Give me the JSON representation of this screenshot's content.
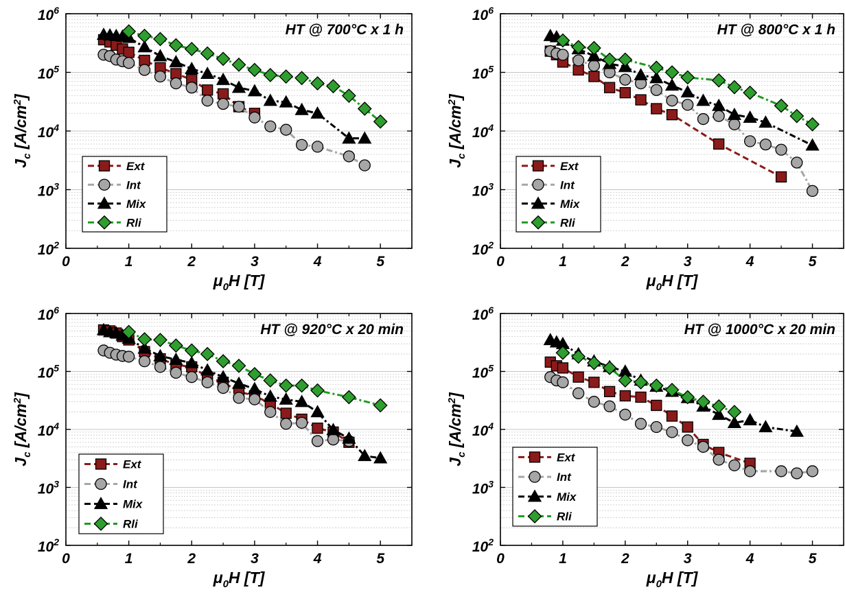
{
  "colors": {
    "ext": "#8b1a1a",
    "int": "#a6a6a6",
    "mix": "#000000",
    "rli": "#1f9a1f",
    "rli_marker": "#2e9e2e",
    "grid": "#c8c8c8"
  },
  "chart_data": [
    {
      "type": "line",
      "title": "HT @ 700°C x 1 h",
      "xlabel": "μ0H [T]",
      "ylabel": "Jc [A/cm2]",
      "x_ticks": [
        "0",
        "1",
        "2",
        "3",
        "4",
        "5"
      ],
      "y_ticks": [
        "10^2",
        "10^3",
        "10^4",
        "10^5",
        "10^6"
      ],
      "xlim": [
        0,
        5.5
      ],
      "ylim": [
        100,
        1000000
      ],
      "yscale": "log",
      "grid": "horizontal minor",
      "legend_position": "bottom-left",
      "series": [
        {
          "name": "Ext",
          "x": [
            0.6,
            0.7,
            0.8,
            0.9,
            1.0,
            1.25,
            1.5,
            1.75,
            2.0,
            2.25,
            2.5,
            2.75,
            3.0
          ],
          "y": [
            360000,
            330000,
            290000,
            250000,
            220000,
            160000,
            120000,
            95000,
            75000,
            50000,
            43000,
            26000,
            20000
          ]
        },
        {
          "name": "Int",
          "x": [
            0.6,
            0.7,
            0.8,
            0.9,
            1.0,
            1.25,
            1.5,
            1.75,
            2.0,
            2.25,
            2.5,
            2.75,
            3.0,
            3.25,
            3.5,
            3.75,
            4.0,
            4.5,
            4.75
          ],
          "y": [
            200000,
            190000,
            165000,
            155000,
            145000,
            110000,
            85000,
            65000,
            55000,
            33000,
            29000,
            26000,
            17000,
            12000,
            10500,
            5800,
            5400,
            3700,
            2600
          ]
        },
        {
          "name": "Mix",
          "x": [
            0.6,
            0.7,
            0.8,
            0.9,
            1.0,
            1.25,
            1.5,
            1.75,
            2.0,
            2.25,
            2.5,
            2.75,
            3.0,
            3.25,
            3.5,
            3.75,
            4.0,
            4.5,
            4.75
          ],
          "y": [
            440000,
            430000,
            420000,
            410000,
            390000,
            270000,
            190000,
            150000,
            115000,
            95000,
            75000,
            55000,
            48000,
            33000,
            31000,
            23000,
            20000,
            7500,
            7500
          ]
        },
        {
          "name": "Rli",
          "x": [
            1.0,
            1.25,
            1.5,
            1.75,
            2.0,
            2.25,
            2.5,
            2.75,
            3.0,
            3.25,
            3.5,
            3.75,
            4.0,
            4.25,
            4.5,
            4.75,
            5.0
          ],
          "y": [
            500000,
            420000,
            370000,
            290000,
            250000,
            210000,
            170000,
            135000,
            110000,
            90000,
            85000,
            80000,
            65000,
            58000,
            40000,
            24000,
            14500
          ]
        }
      ]
    },
    {
      "type": "line",
      "title": "HT @ 800°C x 1 h",
      "xlabel": "μ0H [T]",
      "ylabel": "Jc [A/cm2]",
      "x_ticks": [
        "0",
        "1",
        "2",
        "3",
        "4",
        "5"
      ],
      "y_ticks": [
        "10^2",
        "10^3",
        "10^4",
        "10^5",
        "10^6"
      ],
      "xlim": [
        0,
        5.5
      ],
      "ylim": [
        100,
        1000000
      ],
      "yscale": "log",
      "grid": "horizontal minor",
      "legend_position": "bottom-left",
      "series": [
        {
          "name": "Ext",
          "x": [
            0.8,
            0.9,
            1.0,
            1.25,
            1.5,
            1.75,
            2.0,
            2.25,
            2.5,
            2.75,
            3.5,
            4.5
          ],
          "y": [
            230000,
            200000,
            150000,
            110000,
            85000,
            55000,
            45000,
            34000,
            24000,
            19000,
            6000,
            1650
          ]
        },
        {
          "name": "Int",
          "x": [
            0.8,
            0.9,
            1.0,
            1.25,
            1.5,
            1.75,
            2.0,
            2.25,
            2.5,
            2.75,
            3.0,
            3.25,
            3.5,
            3.75,
            4.0,
            4.25,
            4.5,
            4.75,
            5.0
          ],
          "y": [
            230000,
            210000,
            200000,
            160000,
            130000,
            100000,
            75000,
            65000,
            50000,
            33000,
            28000,
            16000,
            18000,
            13000,
            6700,
            5900,
            4800,
            2900,
            950
          ]
        },
        {
          "name": "Mix",
          "x": [
            0.8,
            0.9,
            1.0,
            1.25,
            1.5,
            1.75,
            2.0,
            2.25,
            2.5,
            2.75,
            3.0,
            3.25,
            3.5,
            3.75,
            4.0,
            4.25,
            5.0
          ],
          "y": [
            420000,
            400000,
            350000,
            250000,
            190000,
            140000,
            125000,
            90000,
            80000,
            60000,
            46000,
            33000,
            27000,
            19000,
            17000,
            14000,
            5700
          ]
        },
        {
          "name": "Rli",
          "x": [
            1.0,
            1.25,
            1.5,
            1.75,
            2.0,
            2.5,
            2.75,
            3.0,
            3.5,
            3.75,
            4.0,
            4.5,
            4.75,
            5.0
          ],
          "y": [
            350000,
            270000,
            260000,
            165000,
            165000,
            120000,
            100000,
            82000,
            73000,
            56000,
            45000,
            27000,
            18000,
            13000
          ]
        }
      ]
    },
    {
      "type": "line",
      "title": "HT @ 920°C x 20 min",
      "xlabel": "μ0H [T]",
      "ylabel": "Jc [A/cm2]",
      "x_ticks": [
        "0",
        "1",
        "2",
        "3",
        "4",
        "5"
      ],
      "y_ticks": [
        "10^2",
        "10^3",
        "10^4",
        "10^5",
        "10^6"
      ],
      "xlim": [
        0,
        5.5
      ],
      "ylim": [
        100,
        1000000
      ],
      "yscale": "log",
      "grid": "horizontal minor",
      "legend_position": "bottom-left",
      "series": [
        {
          "name": "Ext",
          "x": [
            0.6,
            0.7,
            0.8,
            0.9,
            1.0,
            1.25,
            1.5,
            1.75,
            2.0,
            2.25,
            2.5,
            2.75,
            3.0,
            3.25,
            3.5,
            3.75,
            4.0,
            4.25,
            4.5
          ],
          "y": [
            520000,
            500000,
            460000,
            400000,
            350000,
            220000,
            165000,
            130000,
            120000,
            80000,
            65000,
            45000,
            38000,
            28000,
            19000,
            15000,
            10500,
            9000,
            6000
          ]
        },
        {
          "name": "Int",
          "x": [
            0.6,
            0.7,
            0.8,
            0.9,
            1.0,
            1.25,
            1.5,
            1.75,
            2.0,
            2.25,
            2.5,
            2.75,
            3.0,
            3.25,
            3.5,
            3.75,
            4.0,
            4.25,
            4.5
          ],
          "y": [
            230000,
            210000,
            195000,
            185000,
            180000,
            150000,
            120000,
            95000,
            80000,
            65000,
            52000,
            35000,
            33000,
            20000,
            12500,
            13000,
            6300,
            6700,
            6300
          ]
        },
        {
          "name": "Mix",
          "x": [
            0.6,
            0.7,
            0.8,
            0.9,
            1.0,
            1.25,
            1.5,
            1.75,
            2.0,
            2.25,
            2.5,
            2.75,
            3.0,
            3.25,
            3.5,
            3.75,
            4.0,
            4.25,
            4.5,
            4.75,
            5.0
          ],
          "y": [
            520000,
            480000,
            460000,
            420000,
            370000,
            250000,
            185000,
            160000,
            140000,
            105000,
            80000,
            62000,
            50000,
            37000,
            33000,
            30000,
            20000,
            9800,
            7000,
            3500,
            3200
          ]
        },
        {
          "name": "Rli",
          "x": [
            1.0,
            1.25,
            1.5,
            1.75,
            2.0,
            2.25,
            2.5,
            2.75,
            3.0,
            3.25,
            3.5,
            3.75,
            4.0,
            4.5,
            5.0
          ],
          "y": [
            480000,
            360000,
            350000,
            280000,
            230000,
            200000,
            150000,
            125000,
            90000,
            70000,
            57000,
            57000,
            47000,
            36000,
            26000
          ]
        }
      ]
    },
    {
      "type": "line",
      "title": "HT @ 1000°C x 20 min",
      "xlabel": "μ0H [T]",
      "ylabel": "Jc [A/cm2]",
      "x_ticks": [
        "0",
        "1",
        "2",
        "3",
        "4",
        "5"
      ],
      "y_ticks": [
        "10^2",
        "10^3",
        "10^4",
        "10^5",
        "10^6"
      ],
      "xlim": [
        0,
        5.5
      ],
      "ylim": [
        100,
        1000000
      ],
      "yscale": "log",
      "grid": "horizontal minor",
      "legend_position": "bottom-left",
      "series": [
        {
          "name": "Ext",
          "x": [
            0.8,
            0.9,
            1.0,
            1.25,
            1.5,
            1.75,
            2.0,
            2.25,
            2.5,
            2.75,
            3.0,
            3.25,
            3.5,
            4.0
          ],
          "y": [
            145000,
            125000,
            115000,
            80000,
            65000,
            45000,
            38000,
            36000,
            26000,
            17000,
            11000,
            5500,
            4000,
            2600
          ]
        },
        {
          "name": "Int",
          "x": [
            0.8,
            0.9,
            1.0,
            1.25,
            1.5,
            1.75,
            2.0,
            2.25,
            2.5,
            2.75,
            3.0,
            3.25,
            3.5,
            3.75,
            4.0,
            4.5,
            4.75,
            5.0
          ],
          "y": [
            80000,
            70000,
            65000,
            42000,
            30000,
            25000,
            18000,
            12500,
            11000,
            9000,
            6500,
            5000,
            3000,
            2400,
            1900,
            1900,
            1750,
            1900
          ]
        },
        {
          "name": "Mix",
          "x": [
            0.8,
            0.9,
            1.0,
            1.25,
            1.5,
            1.75,
            2.0,
            2.25,
            2.5,
            2.75,
            3.0,
            3.25,
            3.5,
            3.75,
            4.0,
            4.25,
            4.75
          ],
          "y": [
            350000,
            320000,
            300000,
            200000,
            150000,
            120000,
            100000,
            70000,
            55000,
            45000,
            35000,
            25000,
            18000,
            13000,
            14500,
            11000,
            9200
          ]
        },
        {
          "name": "Rli",
          "x": [
            1.0,
            1.25,
            1.5,
            1.75,
            2.0,
            2.25,
            2.5,
            2.75,
            3.0,
            3.25,
            3.5,
            3.75
          ],
          "y": [
            210000,
            180000,
            140000,
            115000,
            70000,
            65000,
            57000,
            48000,
            36000,
            30000,
            25000,
            20000
          ]
        }
      ]
    }
  ]
}
